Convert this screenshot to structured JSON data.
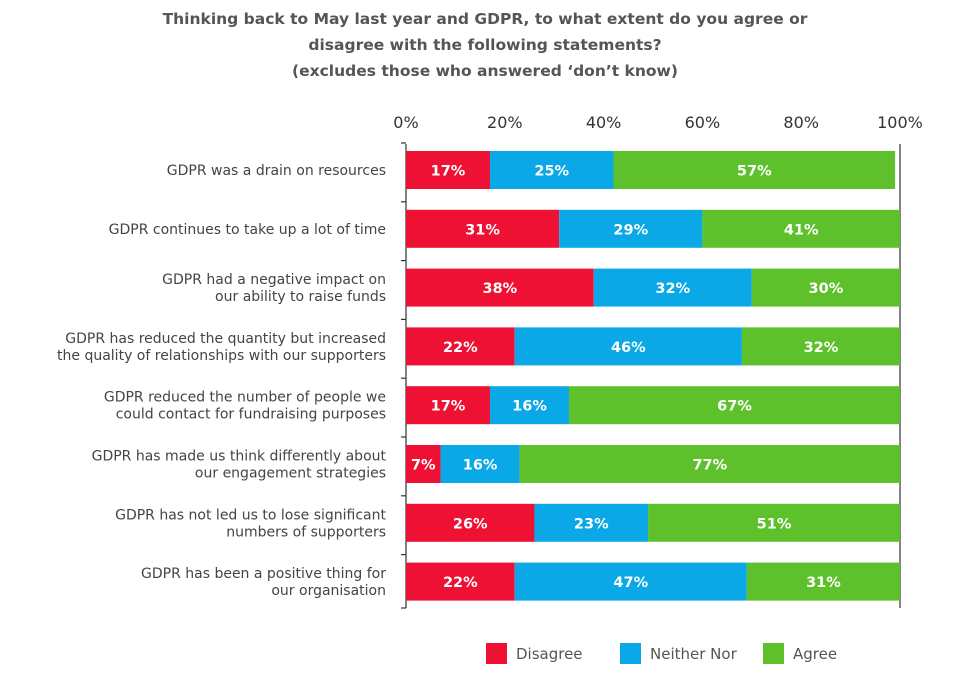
{
  "title_lines": [
    "Thinking back to May last year and GDPR, to what extent do you agree or",
    "disagree with the following statements?",
    "(excludes those who answered ‘don’t know)"
  ],
  "chart_data": {
    "type": "bar",
    "orientation": "horizontal",
    "stacked": true,
    "title": "Thinking back to May last year and GDPR, to what extent do you agree or disagree with the following statements? (excludes those who answered ‘don’t know)",
    "xlabel": "",
    "ylabel": "",
    "xlim": [
      0,
      100
    ],
    "x_ticks": [
      "0%",
      "20%",
      "40%",
      "60%",
      "80%",
      "100%"
    ],
    "x_axis_position": "top",
    "grid": false,
    "legend_position": "bottom",
    "categories": [
      [
        "GDPR was a drain on resources"
      ],
      [
        "GDPR continues to take up a lot of time"
      ],
      [
        "GDPR had a negative impact on",
        "our ability to raise funds"
      ],
      [
        "GDPR has reduced the quantity but increased",
        "the quality of relationships with our supporters"
      ],
      [
        "GDPR reduced the number of people we",
        "could contact for fundraising purposes"
      ],
      [
        "GDPR has made us think differently about",
        "our engagement strategies"
      ],
      [
        "GDPR has not led us to lose significant",
        "numbers of supporters"
      ],
      [
        "GDPR has been a positive thing for",
        "our organisation"
      ]
    ],
    "series": [
      {
        "name": "Disagree",
        "color": "#ee1133",
        "values": [
          17,
          31,
          38,
          22,
          17,
          7,
          26,
          22
        ]
      },
      {
        "name": "Neither Nor",
        "color": "#0aa8e6",
        "values": [
          25,
          29,
          32,
          46,
          16,
          16,
          23,
          47
        ]
      },
      {
        "name": "Agree",
        "color": "#5ec12c",
        "values": [
          57,
          41,
          30,
          32,
          67,
          77,
          51,
          31
        ]
      }
    ]
  }
}
